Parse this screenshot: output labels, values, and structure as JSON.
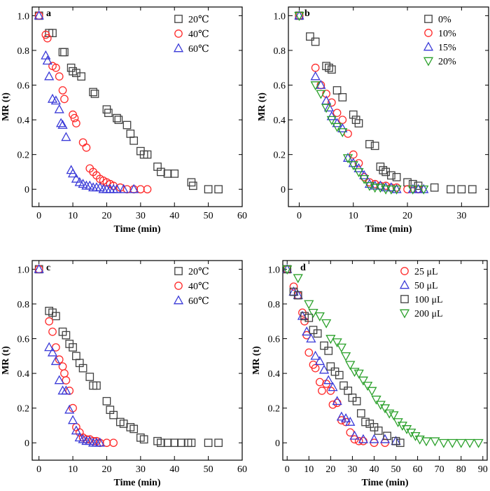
{
  "chart_data": [
    {
      "type": "scatter",
      "panel": "a",
      "xlabel": "Time (min)",
      "ylabel": "MR (t)",
      "xlim": [
        -2,
        60
      ],
      "ylim": [
        -0.1,
        1.05
      ],
      "xticks": [
        0,
        10,
        20,
        30,
        40,
        50,
        60
      ],
      "yticks": [
        0,
        0.2,
        0.4,
        0.6,
        0.8,
        1.0
      ],
      "ytick_labels": [
        "0",
        "0.2",
        "0.4",
        "0.6",
        "0.8",
        "1.0"
      ],
      "grid": false,
      "legend_position": "top-right",
      "series": [
        {
          "name": "20℃",
          "marker": "square",
          "color": "#404040",
          "x": [
            0,
            3,
            4,
            7,
            7.5,
            9.5,
            10,
            11,
            12.5,
            16,
            16.5,
            20,
            20.5,
            23,
            23.5,
            26,
            27,
            28,
            30,
            31,
            32,
            35,
            36,
            38,
            40,
            45,
            45.5,
            50,
            53
          ],
          "y": [
            1.0,
            0.9,
            0.9,
            0.79,
            0.79,
            0.7,
            0.68,
            0.67,
            0.65,
            0.56,
            0.55,
            0.46,
            0.44,
            0.41,
            0.4,
            0.37,
            0.32,
            0.28,
            0.22,
            0.2,
            0.2,
            0.13,
            0.1,
            0.09,
            0.09,
            0.04,
            0.02,
            0.0,
            0.0
          ]
        },
        {
          "name": "40℃",
          "marker": "circle",
          "color": "#ff2a2a",
          "x": [
            0,
            2,
            2.5,
            4,
            5,
            6,
            7,
            7.5,
            10,
            10.5,
            11,
            13,
            14,
            15,
            16,
            17,
            18,
            19,
            20,
            21,
            22,
            24,
            26,
            28,
            30,
            32
          ],
          "y": [
            1.0,
            0.89,
            0.87,
            0.71,
            0.7,
            0.65,
            0.57,
            0.52,
            0.43,
            0.41,
            0.38,
            0.27,
            0.24,
            0.12,
            0.1,
            0.08,
            0.06,
            0.05,
            0.04,
            0.03,
            0.02,
            0.01,
            0.0,
            0.0,
            0.0,
            0.0
          ]
        },
        {
          "name": "60℃",
          "marker": "triangle",
          "color": "#3a3ad8",
          "x": [
            0,
            2,
            2.5,
            3,
            4,
            5,
            6,
            6.5,
            7,
            8,
            9.5,
            10,
            11,
            12,
            13,
            14,
            15,
            16,
            17,
            18,
            19,
            20,
            21,
            22,
            23,
            25,
            28
          ],
          "y": [
            1.0,
            0.77,
            0.74,
            0.65,
            0.52,
            0.51,
            0.46,
            0.38,
            0.37,
            0.3,
            0.11,
            0.09,
            0.06,
            0.04,
            0.03,
            0.02,
            0.02,
            0.01,
            0.01,
            0.01,
            0.0,
            0.0,
            0.0,
            0.0,
            0.0,
            0.0,
            0.0
          ]
        }
      ]
    },
    {
      "type": "scatter",
      "panel": "b",
      "xlabel": "Time (min)",
      "ylabel": "MR (t)",
      "xlim": [
        -2,
        35
      ],
      "ylim": [
        -0.1,
        1.05
      ],
      "xticks": [
        0,
        10,
        20,
        30
      ],
      "yticks": [
        0,
        0.2,
        0.4,
        0.6,
        0.8,
        1.0
      ],
      "ytick_labels": [
        "0",
        "0.2",
        "0.4",
        "0.6",
        "0.8",
        "1.0"
      ],
      "grid": false,
      "legend_position": "top-right",
      "series": [
        {
          "name": "0%",
          "marker": "square",
          "color": "#404040",
          "x": [
            0,
            2,
            3,
            5,
            5.5,
            6,
            7,
            8,
            10,
            10.5,
            11,
            13,
            14,
            15,
            15.5,
            16,
            17,
            18,
            20,
            21,
            22,
            25,
            28,
            30,
            32
          ],
          "y": [
            1.0,
            0.88,
            0.85,
            0.71,
            0.7,
            0.69,
            0.57,
            0.53,
            0.43,
            0.4,
            0.38,
            0.26,
            0.25,
            0.13,
            0.11,
            0.1,
            0.08,
            0.07,
            0.04,
            0.03,
            0.02,
            0.01,
            0.0,
            0.0,
            0.0
          ]
        },
        {
          "name": "10%",
          "marker": "circle",
          "color": "#ff2a2a",
          "x": [
            0,
            3,
            4,
            5,
            6,
            7,
            8,
            9,
            10,
            11,
            12,
            13,
            14,
            15,
            16,
            17,
            18,
            20,
            22
          ],
          "y": [
            1.0,
            0.7,
            0.6,
            0.55,
            0.5,
            0.44,
            0.4,
            0.32,
            0.2,
            0.15,
            0.07,
            0.04,
            0.03,
            0.02,
            0.02,
            0.01,
            0.01,
            0.0,
            0.0
          ]
        },
        {
          "name": "15%",
          "marker": "triangle",
          "color": "#3a3ad8",
          "x": [
            0,
            3,
            4,
            5,
            5.5,
            6,
            7,
            8,
            9,
            10,
            11,
            12,
            13,
            14,
            15,
            16,
            17,
            18,
            21,
            22,
            23
          ],
          "y": [
            1.0,
            0.65,
            0.6,
            0.51,
            0.47,
            0.42,
            0.38,
            0.35,
            0.18,
            0.15,
            0.12,
            0.08,
            0.03,
            0.02,
            0.02,
            0.01,
            0.01,
            0.0,
            0.0,
            0.0,
            0.0
          ]
        },
        {
          "name": "20%",
          "marker": "triangle-down",
          "color": "#2aa02a",
          "x": [
            0,
            3,
            4,
            5,
            6,
            7,
            8,
            9,
            10,
            11,
            12,
            13,
            14,
            15,
            16,
            17,
            18,
            21,
            23
          ],
          "y": [
            1.0,
            0.6,
            0.55,
            0.47,
            0.4,
            0.36,
            0.33,
            0.18,
            0.14,
            0.1,
            0.06,
            0.02,
            0.01,
            0.01,
            0.0,
            0.0,
            0.0,
            0.0,
            0.0
          ]
        }
      ]
    },
    {
      "type": "scatter",
      "panel": "c",
      "xlabel": "Time (min)",
      "ylabel": "MR (t)",
      "xlim": [
        -2,
        60
      ],
      "ylim": [
        -0.1,
        1.05
      ],
      "xticks": [
        0,
        10,
        20,
        30,
        40,
        50,
        60
      ],
      "yticks": [
        0,
        0.2,
        0.4,
        0.6,
        0.8,
        1.0
      ],
      "ytick_labels": [
        "0",
        "0.2",
        "0.4",
        "0.6",
        "0.8",
        "1.0"
      ],
      "grid": false,
      "legend_position": "top-right",
      "series": [
        {
          "name": "20℃",
          "marker": "square",
          "color": "#404040",
          "x": [
            0,
            3,
            4,
            5,
            7,
            8,
            9,
            10,
            11,
            12,
            13,
            15,
            16,
            17,
            20,
            21,
            22,
            24,
            25,
            27,
            28,
            30,
            31,
            35,
            36,
            38,
            40,
            42,
            44,
            45,
            50,
            53
          ],
          "y": [
            1.0,
            0.76,
            0.75,
            0.73,
            0.64,
            0.62,
            0.57,
            0.55,
            0.5,
            0.46,
            0.43,
            0.38,
            0.33,
            0.33,
            0.24,
            0.19,
            0.16,
            0.12,
            0.11,
            0.09,
            0.08,
            0.03,
            0.02,
            0.01,
            0.0,
            0.0,
            0.0,
            0.0,
            0.0,
            0.0,
            0.0,
            0.0
          ]
        },
        {
          "name": "40℃",
          "marker": "circle",
          "color": "#ff2a2a",
          "x": [
            0,
            3,
            4,
            5,
            6,
            7,
            7.5,
            8,
            9,
            10,
            11,
            12,
            13,
            14,
            15,
            16,
            17,
            18,
            20,
            22
          ],
          "y": [
            1.0,
            0.7,
            0.64,
            0.55,
            0.48,
            0.44,
            0.4,
            0.36,
            0.3,
            0.2,
            0.09,
            0.06,
            0.03,
            0.02,
            0.02,
            0.01,
            0.01,
            0.0,
            0.0,
            0.0
          ]
        },
        {
          "name": "60℃",
          "marker": "triangle",
          "color": "#3a3ad8",
          "x": [
            0,
            3,
            4,
            5,
            6,
            7,
            8,
            9,
            10,
            11,
            12,
            13,
            14,
            15,
            16,
            17,
            18
          ],
          "y": [
            1.0,
            0.55,
            0.52,
            0.47,
            0.36,
            0.3,
            0.3,
            0.19,
            0.13,
            0.07,
            0.03,
            0.02,
            0.01,
            0.01,
            0.0,
            0.0,
            0.0
          ]
        }
      ]
    },
    {
      "type": "scatter",
      "panel": "d",
      "xlabel": "Time (min)",
      "ylabel": "MR (t)",
      "xlim": [
        -2,
        92
      ],
      "ylim": [
        -0.1,
        1.05
      ],
      "xticks": [
        0,
        10,
        20,
        30,
        40,
        50,
        60,
        70,
        80,
        90
      ],
      "yticks": [
        0,
        0.2,
        0.4,
        0.6,
        0.8,
        1.0
      ],
      "ytick_labels": [
        "0",
        "0.2",
        "0.4",
        "0.6",
        "0.8",
        "1.0"
      ],
      "grid": false,
      "legend_position": "top-right",
      "series": [
        {
          "name": "25 μL",
          "marker": "circle",
          "color": "#ff2a2a",
          "x": [
            0,
            3,
            5,
            7,
            8,
            9,
            10,
            12,
            13,
            15,
            16,
            18,
            20,
            21,
            23,
            25,
            27,
            29,
            31,
            33,
            35,
            40,
            45
          ],
          "y": [
            1.0,
            0.9,
            0.85,
            0.75,
            0.7,
            0.62,
            0.52,
            0.45,
            0.43,
            0.35,
            0.3,
            0.34,
            0.3,
            0.22,
            0.23,
            0.13,
            0.12,
            0.06,
            0.02,
            0.01,
            0.01,
            0.0,
            0.0
          ]
        },
        {
          "name": "50 μL",
          "marker": "triangle",
          "color": "#3a3ad8",
          "x": [
            0,
            3,
            5,
            7,
            9,
            11,
            13,
            15,
            17,
            19,
            21,
            23,
            25,
            27,
            29,
            31,
            35,
            40,
            45,
            50
          ],
          "y": [
            1.0,
            0.87,
            0.85,
            0.73,
            0.64,
            0.6,
            0.5,
            0.47,
            0.42,
            0.36,
            0.32,
            0.24,
            0.15,
            0.14,
            0.12,
            0.04,
            0.02,
            0.02,
            0.02,
            0.01
          ]
        },
        {
          "name": "100 μL",
          "marker": "square",
          "color": "#404040",
          "x": [
            0,
            3,
            5,
            8,
            10,
            12,
            14,
            17,
            19,
            20,
            22,
            24,
            26,
            28,
            30,
            32,
            34,
            36,
            38,
            40,
            42,
            46,
            50,
            52
          ],
          "y": [
            1.0,
            0.87,
            0.85,
            0.73,
            0.72,
            0.65,
            0.63,
            0.56,
            0.53,
            0.44,
            0.41,
            0.39,
            0.33,
            0.3,
            0.26,
            0.24,
            0.17,
            0.12,
            0.11,
            0.09,
            0.07,
            0.04,
            0.01,
            0.0
          ]
        },
        {
          "name": "200 μL",
          "marker": "triangle-down",
          "color": "#2aa02a",
          "x": [
            0,
            5,
            10,
            12,
            15,
            18,
            20,
            23,
            25,
            27,
            29,
            31,
            33,
            35,
            37,
            39,
            41,
            43,
            45,
            47,
            49,
            51,
            53,
            55,
            57,
            59,
            61,
            64,
            68,
            72,
            76,
            80,
            84,
            88
          ],
          "y": [
            1.0,
            0.95,
            0.8,
            0.75,
            0.73,
            0.69,
            0.6,
            0.58,
            0.55,
            0.5,
            0.45,
            0.41,
            0.4,
            0.36,
            0.33,
            0.3,
            0.25,
            0.22,
            0.2,
            0.17,
            0.16,
            0.12,
            0.1,
            0.08,
            0.06,
            0.04,
            0.02,
            0.01,
            0.01,
            0.0,
            0.0,
            0.0,
            0.0,
            0.0
          ]
        }
      ]
    }
  ]
}
